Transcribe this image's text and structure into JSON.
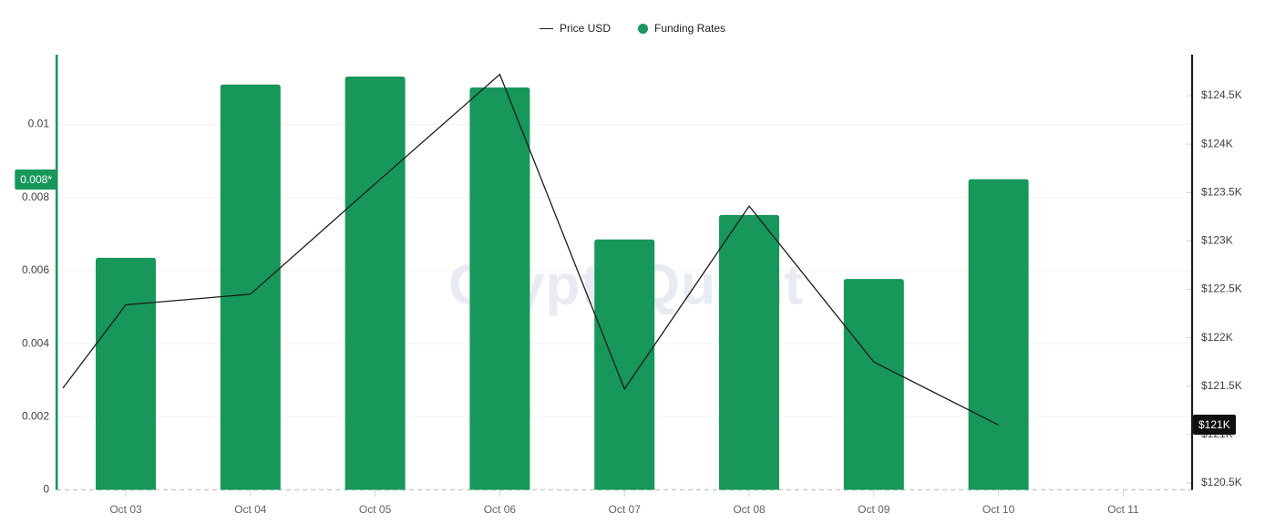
{
  "legend": {
    "price_label": "Price USD",
    "funding_label": "Funding Rates"
  },
  "watermark_text": "CryptoQuant",
  "left_axis": {
    "tick_labels": [
      "0",
      "0.002",
      "0.004",
      "0.006",
      "0.008",
      "0.01"
    ],
    "tick_values": [
      0,
      0.002,
      0.004,
      0.006,
      0.008,
      0.01
    ],
    "badge_label": "0.008*",
    "badge_value": 0.0085
  },
  "right_axis": {
    "tick_labels": [
      "$120.5K",
      "$121K",
      "$121.5K",
      "$122K",
      "$122.5K",
      "$123K",
      "$123.5K",
      "$124K",
      "$124.5K"
    ],
    "tick_values": [
      120.5,
      121,
      121.5,
      122,
      122.5,
      123,
      123.5,
      124,
      124.5
    ],
    "badge_label": "$121K",
    "badge_value": 121.1
  },
  "colors": {
    "bar_green": "#17975A",
    "price_line": "#1b1b1b",
    "left_axis_line": "#17975A",
    "right_axis_line": "#1b1b1b",
    "gridline": "#f3f4f6",
    "baseline_dash": "#c9cbce",
    "tick_mark": "#d2d4d7",
    "axis_label": "#404040",
    "x_label": "#5f6368",
    "watermark": "#e9ebf2",
    "badge_left_bg": "#17975A",
    "badge_right_bg": "#101010"
  },
  "chart_data": {
    "type": "bar+line combo",
    "categories": [
      "Oct 03",
      "Oct 04",
      "Oct 05",
      "Oct 06",
      "Oct 07",
      "Oct 08",
      "Oct 09",
      "Oct 10",
      "Oct 11"
    ],
    "series": [
      {
        "name": "Funding Rates",
        "type": "bar",
        "axis": "left",
        "color": "#17975A",
        "values": [
          0.00635,
          0.01109,
          0.01131,
          0.01101,
          0.00685,
          0.00752,
          0.00577,
          0.0085,
          null
        ]
      },
      {
        "name": "Price USD",
        "type": "line",
        "axis": "right",
        "color": "#1b1b1b",
        "values_usd_k": [
          122.34,
          122.45,
          123.59,
          124.72,
          121.47,
          123.36,
          121.75,
          121.1,
          null
        ],
        "leading_edge_value_usd_k": 121.48
      }
    ],
    "left_axis_range": [
      0,
      0.0119
    ],
    "right_axis_range": [
      120.4,
      124.9
    ],
    "grid": "horizontal only",
    "legend_position": "top-center",
    "title": "",
    "xlabel": "",
    "ylabel_left": "Funding Rates",
    "ylabel_right": "Price USD"
  }
}
